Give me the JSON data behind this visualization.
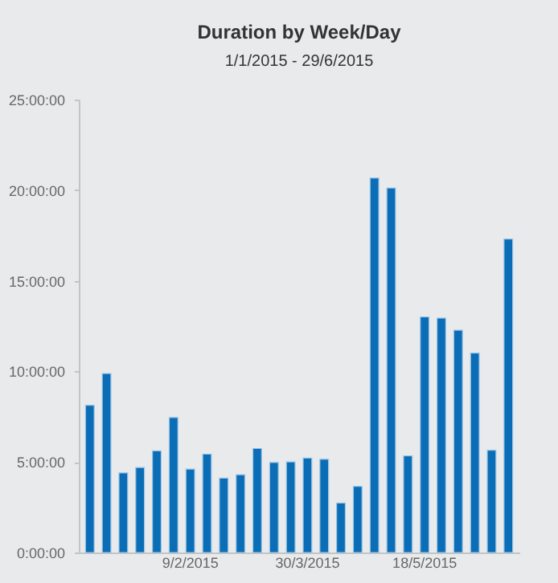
{
  "chart_data": {
    "type": "bar",
    "title": "Duration by Week/Day",
    "subtitle": "1/1/2015 - 29/6/2015",
    "categories": [
      null,
      null,
      null,
      null,
      null,
      null,
      "9/2/2015",
      null,
      null,
      null,
      null,
      null,
      null,
      "30/3/2015",
      null,
      null,
      null,
      null,
      null,
      null,
      "18/5/2015",
      null,
      null,
      null,
      null,
      null
    ],
    "values": [
      8.13,
      9.88,
      4.39,
      4.69,
      5.61,
      7.45,
      4.6,
      5.43,
      4.11,
      4.29,
      5.74,
      4.97,
      5.0,
      5.21,
      5.15,
      2.73,
      3.65,
      20.67,
      20.12,
      5.34,
      13.0,
      12.94,
      12.27,
      11.01,
      5.64,
      17.3
    ],
    "color": "#0a6db5",
    "ylim": [
      0,
      25
    ],
    "yticks": [
      {
        "value": 0,
        "label": "0:00:00"
      },
      {
        "value": 5,
        "label": "5:00:00"
      },
      {
        "value": 10,
        "label": "10:00:00"
      },
      {
        "value": 15,
        "label": "15:00:00"
      },
      {
        "value": 20,
        "label": "20:00:00"
      },
      {
        "value": 25,
        "label": "25:00:00"
      }
    ],
    "grid": false
  }
}
